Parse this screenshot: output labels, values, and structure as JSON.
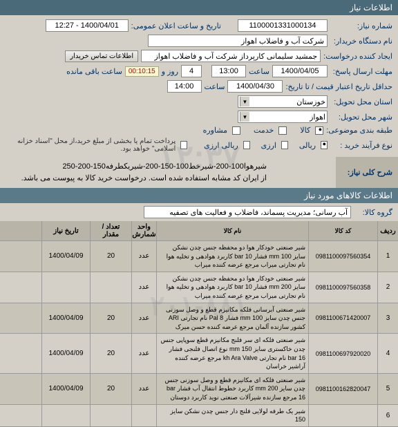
{
  "header": {
    "title": "اطلاعات نیاز"
  },
  "form": {
    "reqnum_label": "شماره نیاز:",
    "reqnum": "1100001331000134",
    "pubdate_label": "تاریخ و ساعت اعلان عمومی:",
    "pubdate": "1400/04/01 - 12:27",
    "org_label": "نام دستگاه خریدار:",
    "org": "شرکت آب و فاضلاب اهواز",
    "creator_label": "ایجاد کننده درخواست:",
    "creator": "جمشید سلیمانی کارپرداز شرکت آب و فاضلاب اهواز",
    "contact_btn": "اطلاعات تماس خریدار",
    "deadline_label": "مهلت ارسال پاسخ:",
    "deadline_date": "1400/04/05",
    "deadline_time": "13:00",
    "remain_days": "4",
    "remain_label1": "روز و",
    "timer": "00:10:15",
    "remain_label2": "ساعت باقی مانده",
    "validity_label": "حداقل تاریخ اعتبار قیمت / تا تاریخ:",
    "validity_date": "1400/04/30",
    "validity_time": "14:00",
    "until_label": "ساعت",
    "province_label": "استان محل تحویل:",
    "province": "خوزستان",
    "city_label": "شهر محل تحویل:",
    "city": "اهواز",
    "budget_label": "طبقه بندی موضوعی:",
    "goods_chk": "کالا",
    "service_chk": "خدمت",
    "advisory_chk": "مشاوره",
    "process_label": "نوع فرآیند خرید :",
    "process_opt1": "ریالی",
    "process_opt2": "ارزی",
    "process_opt3": "ریالی ارزی",
    "payment_note": "پرداخت تمام یا بخشی از مبلغ خرید،از محل \"اسناد خزانه اسلامی\" خواهد بود.",
    "payment_chk": ""
  },
  "desc": {
    "title": "شرح کلی نیاز:",
    "line1": "شیرهوا100-200-شیرخط100-150-200-شیریکطرفه150-200-250",
    "line2": "از ایران کد مشابه استفاده شده است. درخواست خرید کالا به پیوست می باشد."
  },
  "goods_section": {
    "title": "اطلاعات کالاهای مورد نیاز",
    "group_label": "گروه کالا:",
    "group_value": "آب رسانی؛ مدیریت پسماند، فاضلاب و فعالیت های تصفیه"
  },
  "table": {
    "headers": {
      "idx": "ردیف",
      "code": "کد کالا",
      "name": "نام کالا",
      "unit": "واحد شمارش",
      "qty": "تعداد / مقدار",
      "date": "تاریخ نیاز"
    },
    "rows": [
      {
        "idx": "1",
        "code": "0981100097560354",
        "name": "شیر صنعتی خودکار هوا دو محفظه جنس چدن نشکن سایز 100 mm فشار bar 10 کاربرد هوادهی و تخلیه هوا نام تجارتی میراب مرجع عرضه کننده میراب",
        "unit": "عدد",
        "qty": "20",
        "date": "1400/04/09"
      },
      {
        "idx": "2",
        "code": "0981100097560358",
        "name": "شیر صنعتی خودکار هوا دو محفظه جنس چدن نشکن سایز 200 mm فشار bar 10 کاربرد هوادهی و تخلیه هوا نام تجارتی میراب مرجع عرضه کننده میراب",
        "unit": "عدد",
        "qty": "",
        "date": ""
      },
      {
        "idx": "3",
        "code": "0981100671420007",
        "name": "شیر صنعتی آبرسانی فلکه مکانیزم قطع و وصل سوزنی جنس چدن سایز 100 mm فشار Pal 8 نام تجارتی ARI کشور سازنده آلمان مرجع عرضه کننده حسن میرک",
        "unit": "عدد",
        "qty": "20",
        "date": "1400/04/09"
      },
      {
        "idx": "4",
        "code": "0981100697920020",
        "name": "شیر صنعتی فلکه ای سر فلنج مکانیزم قطع سوپاپی جنس چدن خاکستری سایز 150 mm نوع اتصال فلنجی فشار bar 16 نام تجارتی kh Ara Valve مرجع عرضه کننده آراشیر خراسان",
        "unit": "عدد",
        "qty": "20",
        "date": "1400/04/09"
      },
      {
        "idx": "5",
        "code": "0981100162820047",
        "name": "شیر صنعتی فلکه ای مکانیزم قطع و وصل سوزنی جنس چدن سایز 200 mm کاربرد خطوط انتقال آب فشار bar 16 مرجع سازنده شیرآلات صنعتی نوید کاربرد دوستان",
        "unit": "عدد",
        "qty": "20",
        "date": "1400/04/09"
      },
      {
        "idx": "6",
        "code": "",
        "name": "شیر یک طرفه لولایی فلنج دار جنس چدن نشکن سایز 150",
        "unit": "",
        "qty": "",
        "date": ""
      }
    ]
  },
  "watermark1": "۱۲:۳۷",
  "watermark2": "۲۰۱-۸۸۱"
}
